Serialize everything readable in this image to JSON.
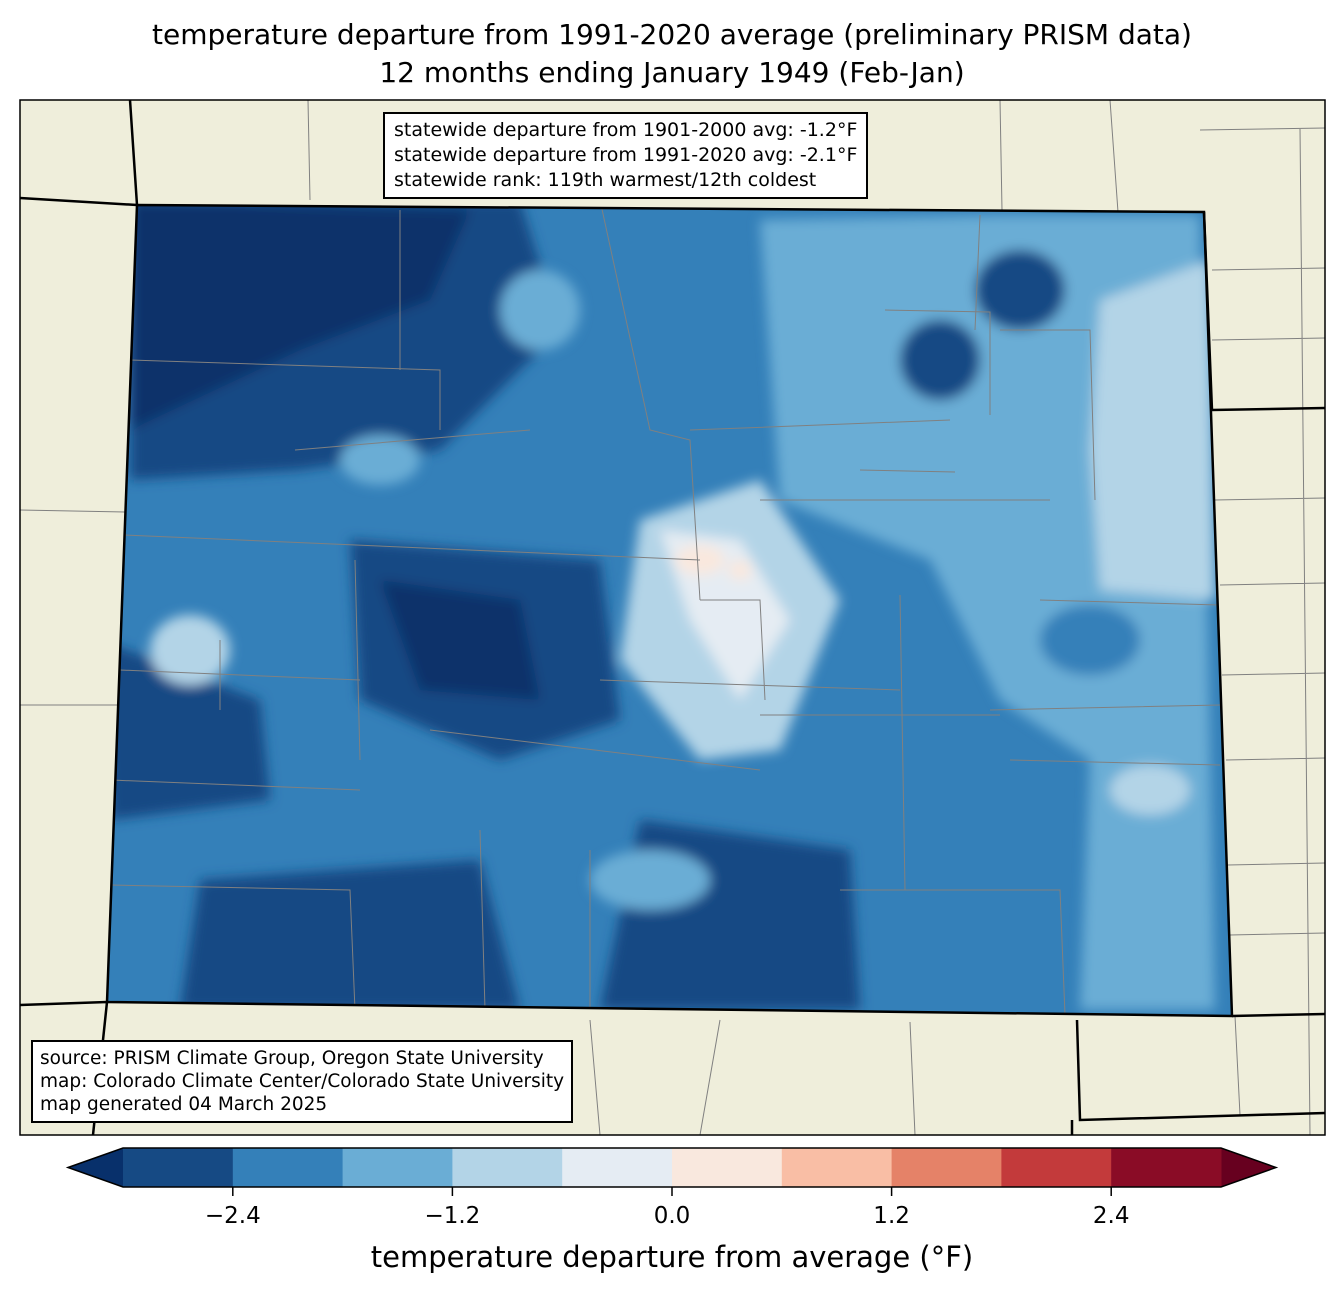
{
  "title": {
    "line1": "temperature departure from 1991-2020 average (preliminary PRISM data)",
    "line2": "12 months ending January 1949 (Feb-Jan)"
  },
  "stats": {
    "line1": "statewide departure from 1901-2000 avg: -1.2°F",
    "line2": "statewide departure from 1991-2020 avg: -2.1°F",
    "line3": "statewide rank: 119th warmest/12th coldest"
  },
  "source": {
    "line1": "source: PRISM Climate Group, Oregon State University",
    "line2": "map: Colorado Climate Center/Colorado State University",
    "line3": "map generated 04 March 2025"
  },
  "colorbar": {
    "label": "temperature departure from average (°F)",
    "levels": [
      -3.0,
      -2.4,
      -1.8,
      -1.2,
      -0.6,
      0.0,
      0.6,
      1.2,
      1.8,
      2.4,
      3.0
    ],
    "colors": [
      "#164a84",
      "#3480b9",
      "#6aadd5",
      "#b3d4e7",
      "#e5ecf3",
      "#f9e8de",
      "#f9bea5",
      "#e58268",
      "#c33a3b",
      "#8a0c26"
    ],
    "extend_low_color": "#08306b",
    "extend_high_color": "#67001f",
    "ticks": [
      "−2.4",
      "−1.2",
      "0.0",
      "1.2",
      "2.4"
    ]
  },
  "map_colors": {
    "land": "#efeedb",
    "county_lines": "#808080"
  }
}
